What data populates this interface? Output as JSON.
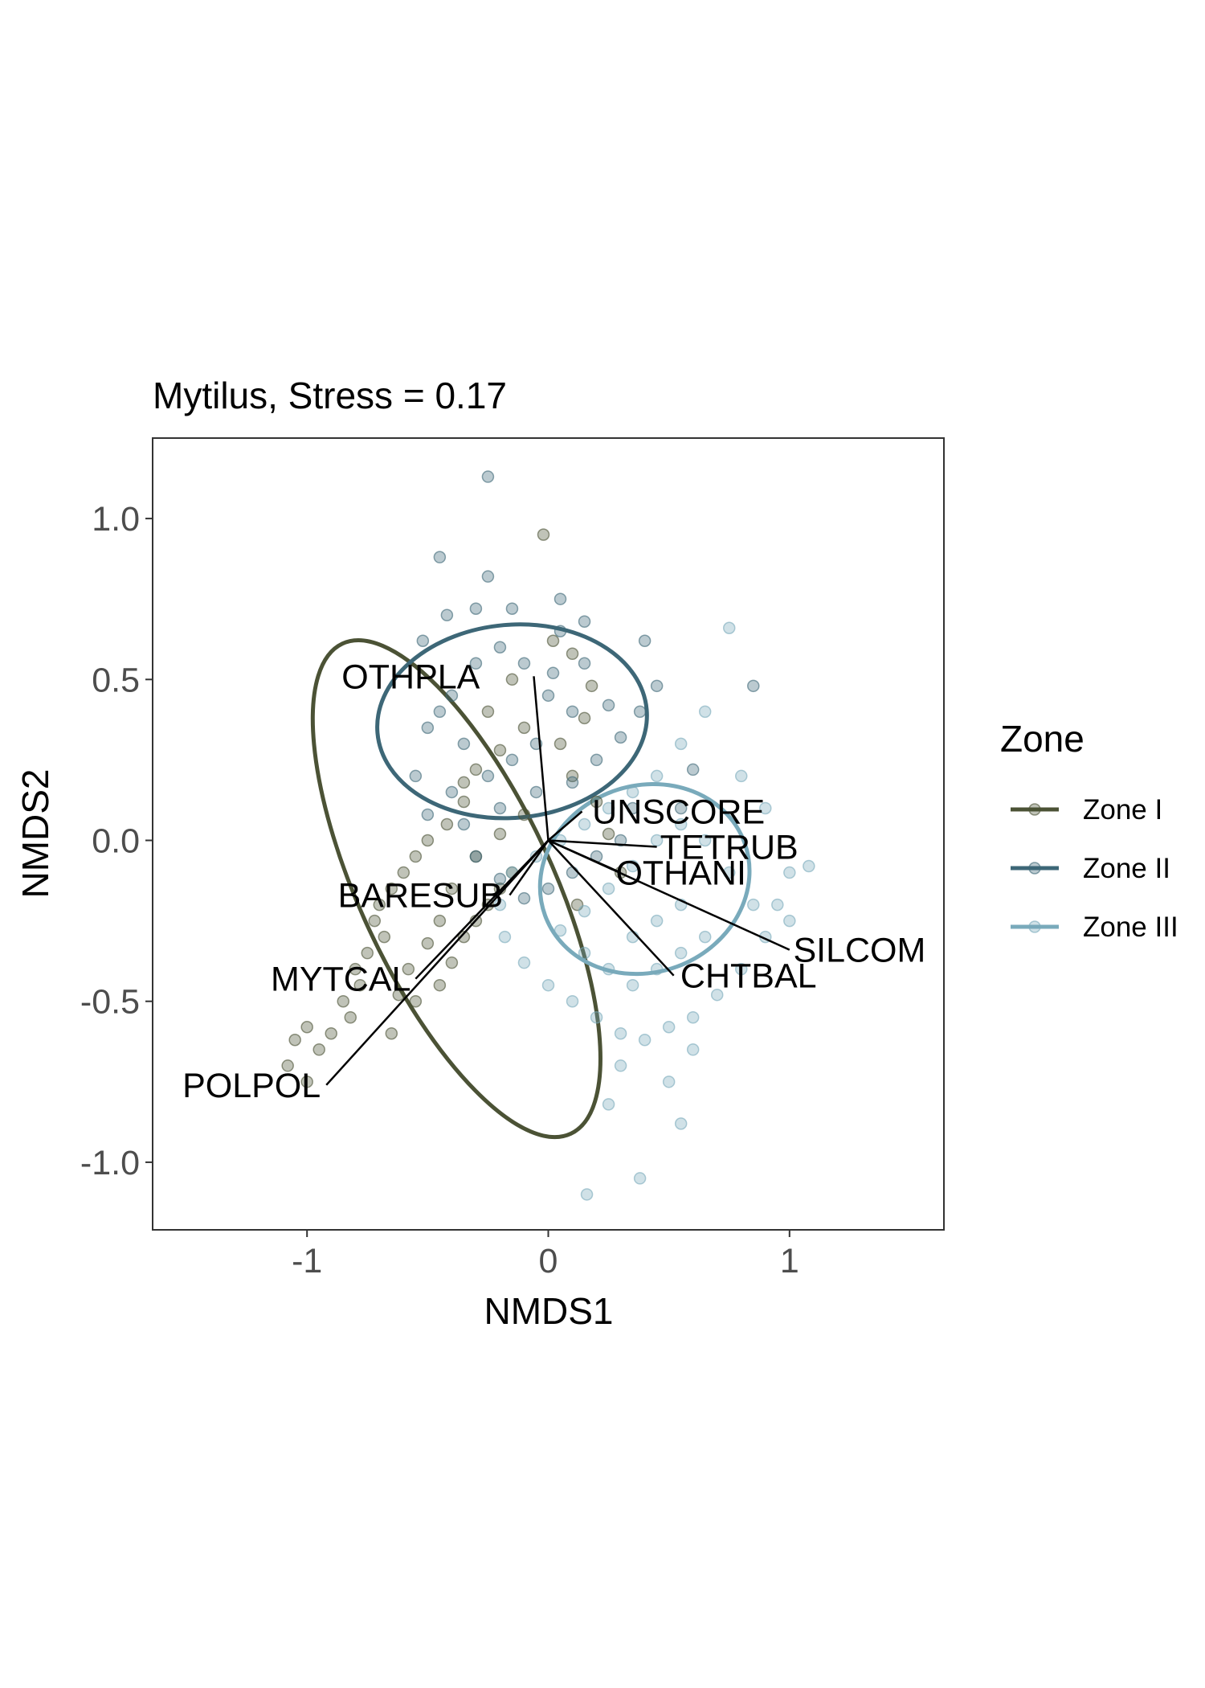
{
  "chart_data": {
    "type": "scatter",
    "title": "Mytilus, Stress = 0.17",
    "xlabel": "NMDS1",
    "ylabel": "NMDS2",
    "xlim": [
      -1.64,
      1.64
    ],
    "ylim": [
      -1.21,
      1.25
    ],
    "x_ticks": [
      -1,
      0,
      1
    ],
    "x_tick_labels": [
      "-1",
      "0",
      "1"
    ],
    "y_ticks": [
      -1.0,
      -0.5,
      0.0,
      0.5,
      1.0
    ],
    "y_tick_labels": [
      "-1.0",
      "-0.5",
      "0.0",
      "0.5",
      "1.0"
    ],
    "grid": false,
    "legend": {
      "title": "Zone",
      "position": "right",
      "entries": [
        "Zone I",
        "Zone II",
        "Zone III"
      ]
    },
    "series": [
      {
        "name": "Zone I",
        "color": "#4b5235",
        "ellipse": {
          "cx": -0.38,
          "cy": -0.15,
          "rx": 0.4,
          "ry": 0.84,
          "angle_deg": 25
        },
        "points": [
          [
            -0.02,
            0.95
          ],
          [
            0.02,
            0.62
          ],
          [
            0.1,
            0.58
          ],
          [
            0.18,
            0.48
          ],
          [
            0.15,
            0.38
          ],
          [
            0.05,
            0.3
          ],
          [
            -0.1,
            0.35
          ],
          [
            -0.2,
            0.28
          ],
          [
            -0.3,
            0.22
          ],
          [
            -0.35,
            0.12
          ],
          [
            -0.42,
            0.05
          ],
          [
            -0.5,
            0.0
          ],
          [
            -0.55,
            -0.05
          ],
          [
            -0.6,
            -0.1
          ],
          [
            -0.65,
            -0.15
          ],
          [
            -0.7,
            -0.2
          ],
          [
            -0.72,
            -0.25
          ],
          [
            -0.68,
            -0.3
          ],
          [
            -0.75,
            -0.35
          ],
          [
            -0.8,
            -0.4
          ],
          [
            -0.78,
            -0.45
          ],
          [
            -0.85,
            -0.5
          ],
          [
            -0.82,
            -0.55
          ],
          [
            -0.9,
            -0.6
          ],
          [
            -0.95,
            -0.65
          ],
          [
            -1.0,
            -0.58
          ],
          [
            -1.05,
            -0.62
          ],
          [
            -1.08,
            -0.7
          ],
          [
            -1.0,
            -0.75
          ],
          [
            -0.65,
            -0.6
          ],
          [
            -0.55,
            -0.5
          ],
          [
            -0.45,
            -0.45
          ],
          [
            -0.4,
            -0.38
          ],
          [
            -0.35,
            -0.3
          ],
          [
            -0.3,
            -0.25
          ],
          [
            -0.25,
            -0.2
          ],
          [
            -0.2,
            -0.15
          ],
          [
            -0.15,
            -0.1
          ],
          [
            -0.45,
            -0.25
          ],
          [
            -0.5,
            -0.32
          ],
          [
            -0.58,
            -0.4
          ],
          [
            -0.62,
            -0.48
          ],
          [
            -0.4,
            -0.15
          ],
          [
            -0.3,
            -0.05
          ],
          [
            -0.2,
            0.02
          ],
          [
            -0.1,
            0.08
          ],
          [
            -0.35,
            0.18
          ],
          [
            -0.25,
            0.4
          ],
          [
            -0.15,
            0.5
          ],
          [
            0.1,
            0.2
          ],
          [
            0.2,
            0.12
          ],
          [
            0.25,
            0.02
          ],
          [
            0.3,
            -0.1
          ],
          [
            0.12,
            -0.2
          ]
        ]
      },
      {
        "name": "Zone II",
        "color": "#3d6777",
        "ellipse": {
          "cx": -0.15,
          "cy": 0.37,
          "rx": 0.56,
          "ry": 0.3,
          "angle_deg": 5
        },
        "points": [
          [
            -0.25,
            1.13
          ],
          [
            -0.45,
            0.88
          ],
          [
            -0.3,
            0.72
          ],
          [
            -0.15,
            0.72
          ],
          [
            0.05,
            0.75
          ],
          [
            0.15,
            0.68
          ],
          [
            0.4,
            0.62
          ],
          [
            0.45,
            0.48
          ],
          [
            0.38,
            0.4
          ],
          [
            0.3,
            0.32
          ],
          [
            0.2,
            0.25
          ],
          [
            0.1,
            0.18
          ],
          [
            -0.05,
            0.15
          ],
          [
            -0.2,
            0.1
          ],
          [
            -0.35,
            0.05
          ],
          [
            -0.5,
            0.08
          ],
          [
            -0.55,
            0.2
          ],
          [
            -0.5,
            0.35
          ],
          [
            -0.4,
            0.45
          ],
          [
            -0.3,
            0.55
          ],
          [
            -0.2,
            0.6
          ],
          [
            -0.1,
            0.55
          ],
          [
            0.0,
            0.45
          ],
          [
            0.1,
            0.4
          ],
          [
            -0.05,
            0.3
          ],
          [
            -0.15,
            0.25
          ],
          [
            -0.25,
            0.2
          ],
          [
            -0.35,
            0.3
          ],
          [
            -0.45,
            0.4
          ],
          [
            -0.4,
            0.15
          ],
          [
            -0.3,
            -0.05
          ],
          [
            -0.2,
            -0.12
          ],
          [
            -0.1,
            -0.18
          ],
          [
            0.0,
            -0.15
          ],
          [
            0.1,
            -0.1
          ],
          [
            0.2,
            -0.05
          ],
          [
            0.3,
            0.0
          ],
          [
            0.35,
            0.1
          ],
          [
            0.25,
            0.42
          ],
          [
            0.15,
            0.55
          ],
          [
            0.05,
            0.65
          ],
          [
            -0.25,
            0.82
          ],
          [
            0.85,
            0.48
          ],
          [
            0.6,
            0.22
          ],
          [
            0.55,
            0.1
          ],
          [
            -0.52,
            0.62
          ],
          [
            -0.42,
            0.7
          ],
          [
            0.02,
            0.52
          ]
        ]
      },
      {
        "name": "Zone III",
        "color": "#79aabb",
        "ellipse": {
          "cx": 0.4,
          "cy": -0.12,
          "rx": 0.44,
          "ry": 0.29,
          "angle_deg": 20
        },
        "points": [
          [
            0.75,
            0.66
          ],
          [
            0.65,
            0.4
          ],
          [
            0.55,
            0.3
          ],
          [
            0.45,
            0.2
          ],
          [
            0.35,
            0.15
          ],
          [
            0.25,
            0.1
          ],
          [
            0.15,
            0.05
          ],
          [
            0.05,
            0.0
          ],
          [
            -0.05,
            -0.05
          ],
          [
            -0.15,
            -0.1
          ],
          [
            -0.2,
            -0.2
          ],
          [
            -0.18,
            -0.3
          ],
          [
            -0.1,
            -0.38
          ],
          [
            0.0,
            -0.45
          ],
          [
            0.1,
            -0.5
          ],
          [
            0.2,
            -0.55
          ],
          [
            0.3,
            -0.6
          ],
          [
            0.4,
            -0.62
          ],
          [
            0.5,
            -0.58
          ],
          [
            0.6,
            -0.55
          ],
          [
            0.7,
            -0.48
          ],
          [
            0.8,
            -0.4
          ],
          [
            0.9,
            -0.3
          ],
          [
            0.95,
            -0.2
          ],
          [
            1.0,
            -0.1
          ],
          [
            1.08,
            -0.08
          ],
          [
            1.0,
            -0.25
          ],
          [
            0.85,
            -0.2
          ],
          [
            0.75,
            -0.1
          ],
          [
            0.65,
            0.0
          ],
          [
            0.55,
            0.05
          ],
          [
            0.45,
            0.0
          ],
          [
            0.35,
            -0.08
          ],
          [
            0.25,
            -0.15
          ],
          [
            0.15,
            -0.22
          ],
          [
            0.05,
            -0.28
          ],
          [
            0.15,
            -0.35
          ],
          [
            0.25,
            -0.4
          ],
          [
            0.35,
            -0.45
          ],
          [
            0.45,
            -0.4
          ],
          [
            0.55,
            -0.35
          ],
          [
            0.65,
            -0.3
          ],
          [
            0.55,
            -0.2
          ],
          [
            0.45,
            -0.25
          ],
          [
            0.35,
            -0.3
          ],
          [
            0.3,
            -0.7
          ],
          [
            0.5,
            -0.75
          ],
          [
            0.55,
            -0.88
          ],
          [
            0.38,
            -1.05
          ],
          [
            0.16,
            -1.1
          ],
          [
            0.25,
            -0.82
          ],
          [
            0.6,
            -0.65
          ],
          [
            0.8,
            0.2
          ],
          [
            0.9,
            0.1
          ]
        ]
      }
    ],
    "vectors": [
      {
        "label": "OTHPLA",
        "end": [
          -0.06,
          0.51
        ],
        "label_pos": [
          -0.57,
          0.51
        ]
      },
      {
        "label": "UNSCORE",
        "end": [
          0.14,
          0.09
        ],
        "label_pos": [
          0.54,
          0.09
        ]
      },
      {
        "label": "TETRUB",
        "end": [
          0.45,
          -0.02
        ],
        "label_pos": [
          0.75,
          -0.02
        ]
      },
      {
        "label": "OTHANI",
        "end": [
          0.3,
          -0.1
        ],
        "label_pos": [
          0.55,
          -0.1
        ]
      },
      {
        "label": "SILCOM",
        "end": [
          1.0,
          -0.34
        ],
        "label_pos": [
          1.29,
          -0.34
        ]
      },
      {
        "label": "CHTBAL",
        "end": [
          0.52,
          -0.42
        ],
        "label_pos": [
          0.83,
          -0.42
        ]
      },
      {
        "label": "BARESUB",
        "end": [
          -0.16,
          -0.17
        ],
        "label_pos": [
          -0.53,
          -0.17
        ]
      },
      {
        "label": "MYTCAL",
        "end": [
          -0.55,
          -0.43
        ],
        "label_pos": [
          -0.86,
          -0.43
        ]
      },
      {
        "label": "POLPOL",
        "end": [
          -0.92,
          -0.76
        ],
        "label_pos": [
          -1.23,
          -0.76
        ]
      }
    ]
  }
}
